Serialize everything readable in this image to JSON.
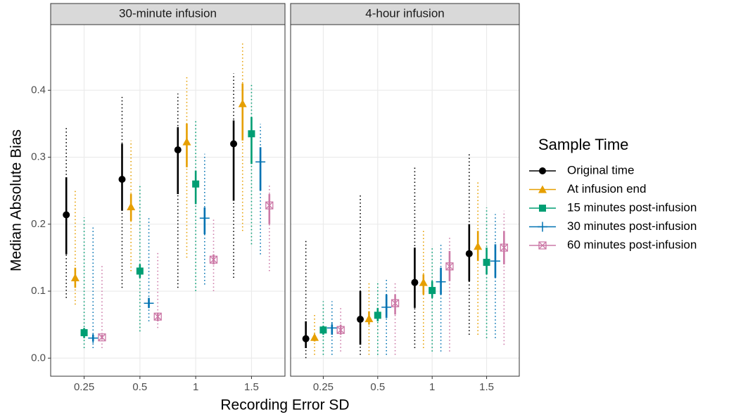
{
  "chart_data": {
    "type": "pointrange",
    "xlabel": "Recording Error SD",
    "ylabel": "Median Absolute Bias",
    "legend_title": "Sample Time",
    "categories": [
      "0.25",
      "0.5",
      "1",
      "1.5"
    ],
    "ylim": [
      -0.027,
      0.498
    ],
    "yticks": [
      {
        "value": 0,
        "label": "0.0"
      },
      0.1,
      0.2,
      0.3,
      0.4
    ],
    "grid": true,
    "series": [
      {
        "name": "Original time",
        "color": "#000000",
        "shape": "circle"
      },
      {
        "name": "At infusion end",
        "color": "#E69F00",
        "shape": "triangle"
      },
      {
        "name": "15 minutes post-infusion",
        "color": "#009E73",
        "shape": "square"
      },
      {
        "name": "30 minutes post-infusion",
        "color": "#0072B2",
        "shape": "plus"
      },
      {
        "name": "60 minutes post-infusion",
        "color": "#CC79A7",
        "shape": "boxx"
      }
    ],
    "panels": [
      {
        "title": "30-minute infusion",
        "series": [
          {
            "values": [
              0.214,
              0.267,
              0.311,
              0.32
            ],
            "inner_low": [
              0.155,
              0.22,
              0.245,
              0.235
            ],
            "inner_high": [
              0.27,
              0.32,
              0.345,
              0.355
            ],
            "outer_low": [
              0.09,
              0.105,
              0.105,
              0.12
            ],
            "outer_high": [
              0.345,
              0.39,
              0.395,
              0.425
            ]
          },
          {
            "values": [
              0.12,
              0.226,
              0.323,
              0.38
            ],
            "inner_low": [
              0.105,
              0.205,
              0.285,
              0.325
            ],
            "inner_high": [
              0.135,
              0.245,
              0.35,
              0.41
            ],
            "outer_low": [
              0.08,
              0.13,
              0.15,
              0.19
            ],
            "outer_high": [
              0.25,
              0.325,
              0.42,
              0.47
            ]
          },
          {
            "values": [
              0.038,
              0.13,
              0.26,
              0.335
            ],
            "inner_low": [
              0.03,
              0.12,
              0.23,
              0.29
            ],
            "inner_high": [
              0.045,
              0.14,
              0.28,
              0.36
            ],
            "outer_low": [
              0.015,
              0.04,
              0.1,
              0.17
            ],
            "outer_high": [
              0.21,
              0.26,
              0.355,
              0.41
            ]
          },
          {
            "values": [
              0.03,
              0.082,
              0.209,
              0.293
            ],
            "inner_low": [
              0.025,
              0.075,
              0.185,
              0.25
            ],
            "inner_high": [
              0.035,
              0.09,
              0.225,
              0.315
            ],
            "outer_low": [
              0.015,
              0.055,
              0.11,
              0.155
            ],
            "outer_high": [
              0.195,
              0.21,
              0.305,
              0.35
            ]
          },
          {
            "values": [
              0.031,
              0.062,
              0.147,
              0.228
            ],
            "inner_low": [
              0.028,
              0.055,
              0.14,
              0.2
            ],
            "inner_high": [
              0.035,
              0.068,
              0.155,
              0.245
            ],
            "outer_low": [
              0.015,
              0.045,
              0.1,
              0.13
            ],
            "outer_high": [
              0.14,
              0.16,
              0.21,
              0.26
            ]
          }
        ]
      },
      {
        "title": "4-hour infusion",
        "series": [
          {
            "values": [
              0.029,
              0.058,
              0.113,
              0.156
            ],
            "inner_low": [
              0.015,
              0.02,
              0.075,
              0.115
            ],
            "inner_high": [
              0.055,
              0.1,
              0.165,
              0.2
            ],
            "outer_low": [
              0.0,
              0.005,
              0.015,
              0.035
            ],
            "outer_high": [
              0.175,
              0.245,
              0.285,
              0.305
            ]
          },
          {
            "values": [
              0.031,
              0.059,
              0.113,
              0.167
            ],
            "inner_low": [
              0.025,
              0.05,
              0.095,
              0.145
            ],
            "inner_high": [
              0.035,
              0.07,
              0.125,
              0.19
            ],
            "outer_low": [
              0.005,
              0.005,
              0.015,
              0.035
            ],
            "outer_high": [
              0.065,
              0.115,
              0.19,
              0.265
            ]
          },
          {
            "values": [
              0.042,
              0.064,
              0.101,
              0.143
            ],
            "inner_low": [
              0.035,
              0.055,
              0.09,
              0.125
            ],
            "inner_high": [
              0.048,
              0.075,
              0.115,
              0.165
            ],
            "outer_low": [
              0.005,
              0.005,
              0.01,
              0.03
            ],
            "outer_high": [
              0.085,
              0.115,
              0.165,
              0.225
            ]
          },
          {
            "values": [
              0.045,
              0.076,
              0.114,
              0.145
            ],
            "inner_low": [
              0.035,
              0.06,
              0.095,
              0.12
            ],
            "inner_high": [
              0.05,
              0.095,
              0.135,
              0.17
            ],
            "outer_low": [
              0.005,
              0.005,
              0.01,
              0.03
            ],
            "outer_high": [
              0.085,
              0.12,
              0.17,
              0.215
            ]
          },
          {
            "values": [
              0.042,
              0.082,
              0.137,
              0.165
            ],
            "inner_low": [
              0.035,
              0.065,
              0.115,
              0.14
            ],
            "inner_high": [
              0.05,
              0.095,
              0.16,
              0.19
            ],
            "outer_low": [
              0.01,
              0.005,
              0.01,
              0.02
            ],
            "outer_high": [
              0.075,
              0.115,
              0.18,
              0.22
            ]
          }
        ]
      }
    ]
  }
}
